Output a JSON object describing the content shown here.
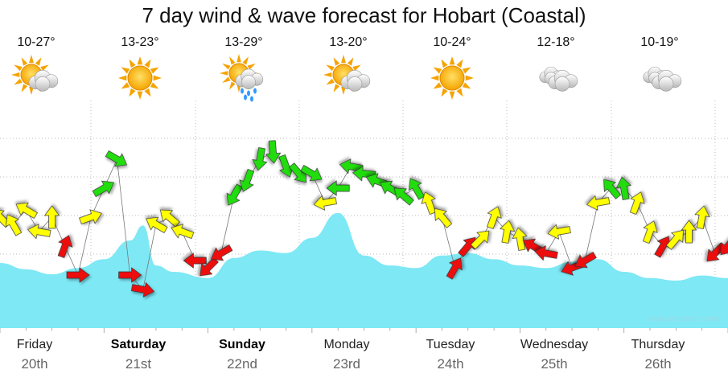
{
  "title": "7 day wind & wave forecast for Hobart (Coastal)",
  "credit": "www.seabreeze.com",
  "days": [
    {
      "name": "Friday",
      "date": "20th",
      "temp": "10-27°",
      "icon": "sun-cloud-icon",
      "bold": false
    },
    {
      "name": "Saturday",
      "date": "21st",
      "temp": "13-23°",
      "icon": "sun-icon",
      "bold": true
    },
    {
      "name": "Sunday",
      "date": "22nd",
      "temp": "13-29°",
      "icon": "sun-cloud-rain-icon",
      "bold": true
    },
    {
      "name": "Monday",
      "date": "23rd",
      "temp": "13-20°",
      "icon": "sun-cloud-icon",
      "bold": false
    },
    {
      "name": "Tuesday",
      "date": "24th",
      "temp": "10-24°",
      "icon": "sun-icon",
      "bold": false
    },
    {
      "name": "Wednesday",
      "date": "25th",
      "temp": "12-18°",
      "icon": "cloud-icon",
      "bold": false
    },
    {
      "name": "Thursday",
      "date": "26th",
      "temp": "10-19°",
      "icon": "cloud-icon",
      "bold": false
    }
  ],
  "colors": {
    "wave": "#7ee8f5",
    "red": "#ee1111",
    "yellow": "#ffff00",
    "green": "#22dd11",
    "grid": "#bbbbbb"
  },
  "chart_data": {
    "type": "area",
    "x_unit": "hour from Friday 00:00",
    "x_range": [
      0,
      168
    ],
    "wave_series": {
      "x": [
        0,
        6,
        12,
        18,
        24,
        30,
        33,
        36,
        40,
        48,
        54,
        60,
        66,
        72,
        78,
        84,
        90,
        96,
        102,
        108,
        114,
        120,
        126,
        132,
        138,
        144,
        150,
        156,
        162,
        168
      ],
      "values": [
        0.52,
        0.47,
        0.43,
        0.48,
        0.55,
        0.7,
        0.82,
        0.5,
        0.45,
        0.4,
        0.56,
        0.62,
        0.6,
        0.72,
        0.92,
        0.58,
        0.5,
        0.48,
        0.58,
        0.6,
        0.55,
        0.5,
        0.48,
        0.53,
        0.55,
        0.45,
        0.4,
        0.38,
        0.42,
        0.4
      ]
    },
    "wind_series": {
      "x": [
        0,
        3,
        6,
        9,
        12,
        15,
        18,
        21,
        24,
        27,
        30,
        33,
        36,
        39,
        42,
        45,
        48,
        51,
        54,
        57,
        60,
        63,
        66,
        69,
        72,
        75,
        78,
        81,
        84,
        87,
        90,
        93,
        96,
        99,
        102,
        105,
        108,
        111,
        114,
        117,
        120,
        123,
        126,
        129,
        132,
        135,
        138,
        141,
        144,
        147,
        150,
        153,
        156,
        159,
        162,
        165,
        168
      ],
      "speed": [
        18,
        17,
        19,
        16,
        18,
        14,
        10,
        18,
        22,
        26,
        10,
        8,
        17,
        18,
        16,
        12,
        11,
        13,
        21,
        23,
        26,
        27,
        25,
        24,
        24,
        20,
        22,
        25,
        24,
        23,
        22,
        21,
        22,
        20,
        18,
        11,
        14,
        15,
        18,
        16,
        15,
        14,
        13,
        16,
        11,
        12,
        20,
        22,
        22,
        20,
        16,
        14,
        15,
        16,
        18,
        13,
        14
      ],
      "direction_deg": [
        135,
        150,
        120,
        100,
        180,
        200,
        270,
        250,
        240,
        300,
        270,
        280,
        120,
        130,
        110,
        90,
        45,
        60,
        30,
        20,
        10,
        355,
        340,
        320,
        300,
        80,
        90,
        100,
        95,
        110,
        120,
        130,
        150,
        160,
        140,
        210,
        220,
        225,
        200,
        190,
        170,
        120,
        100,
        80,
        70,
        60,
        80,
        140,
        170,
        200,
        200,
        210,
        220,
        180,
        190,
        45,
        40
      ]
    },
    "speed_bands": {
      "red": "<15",
      "yellow": "15-20",
      "green": ">20"
    }
  }
}
